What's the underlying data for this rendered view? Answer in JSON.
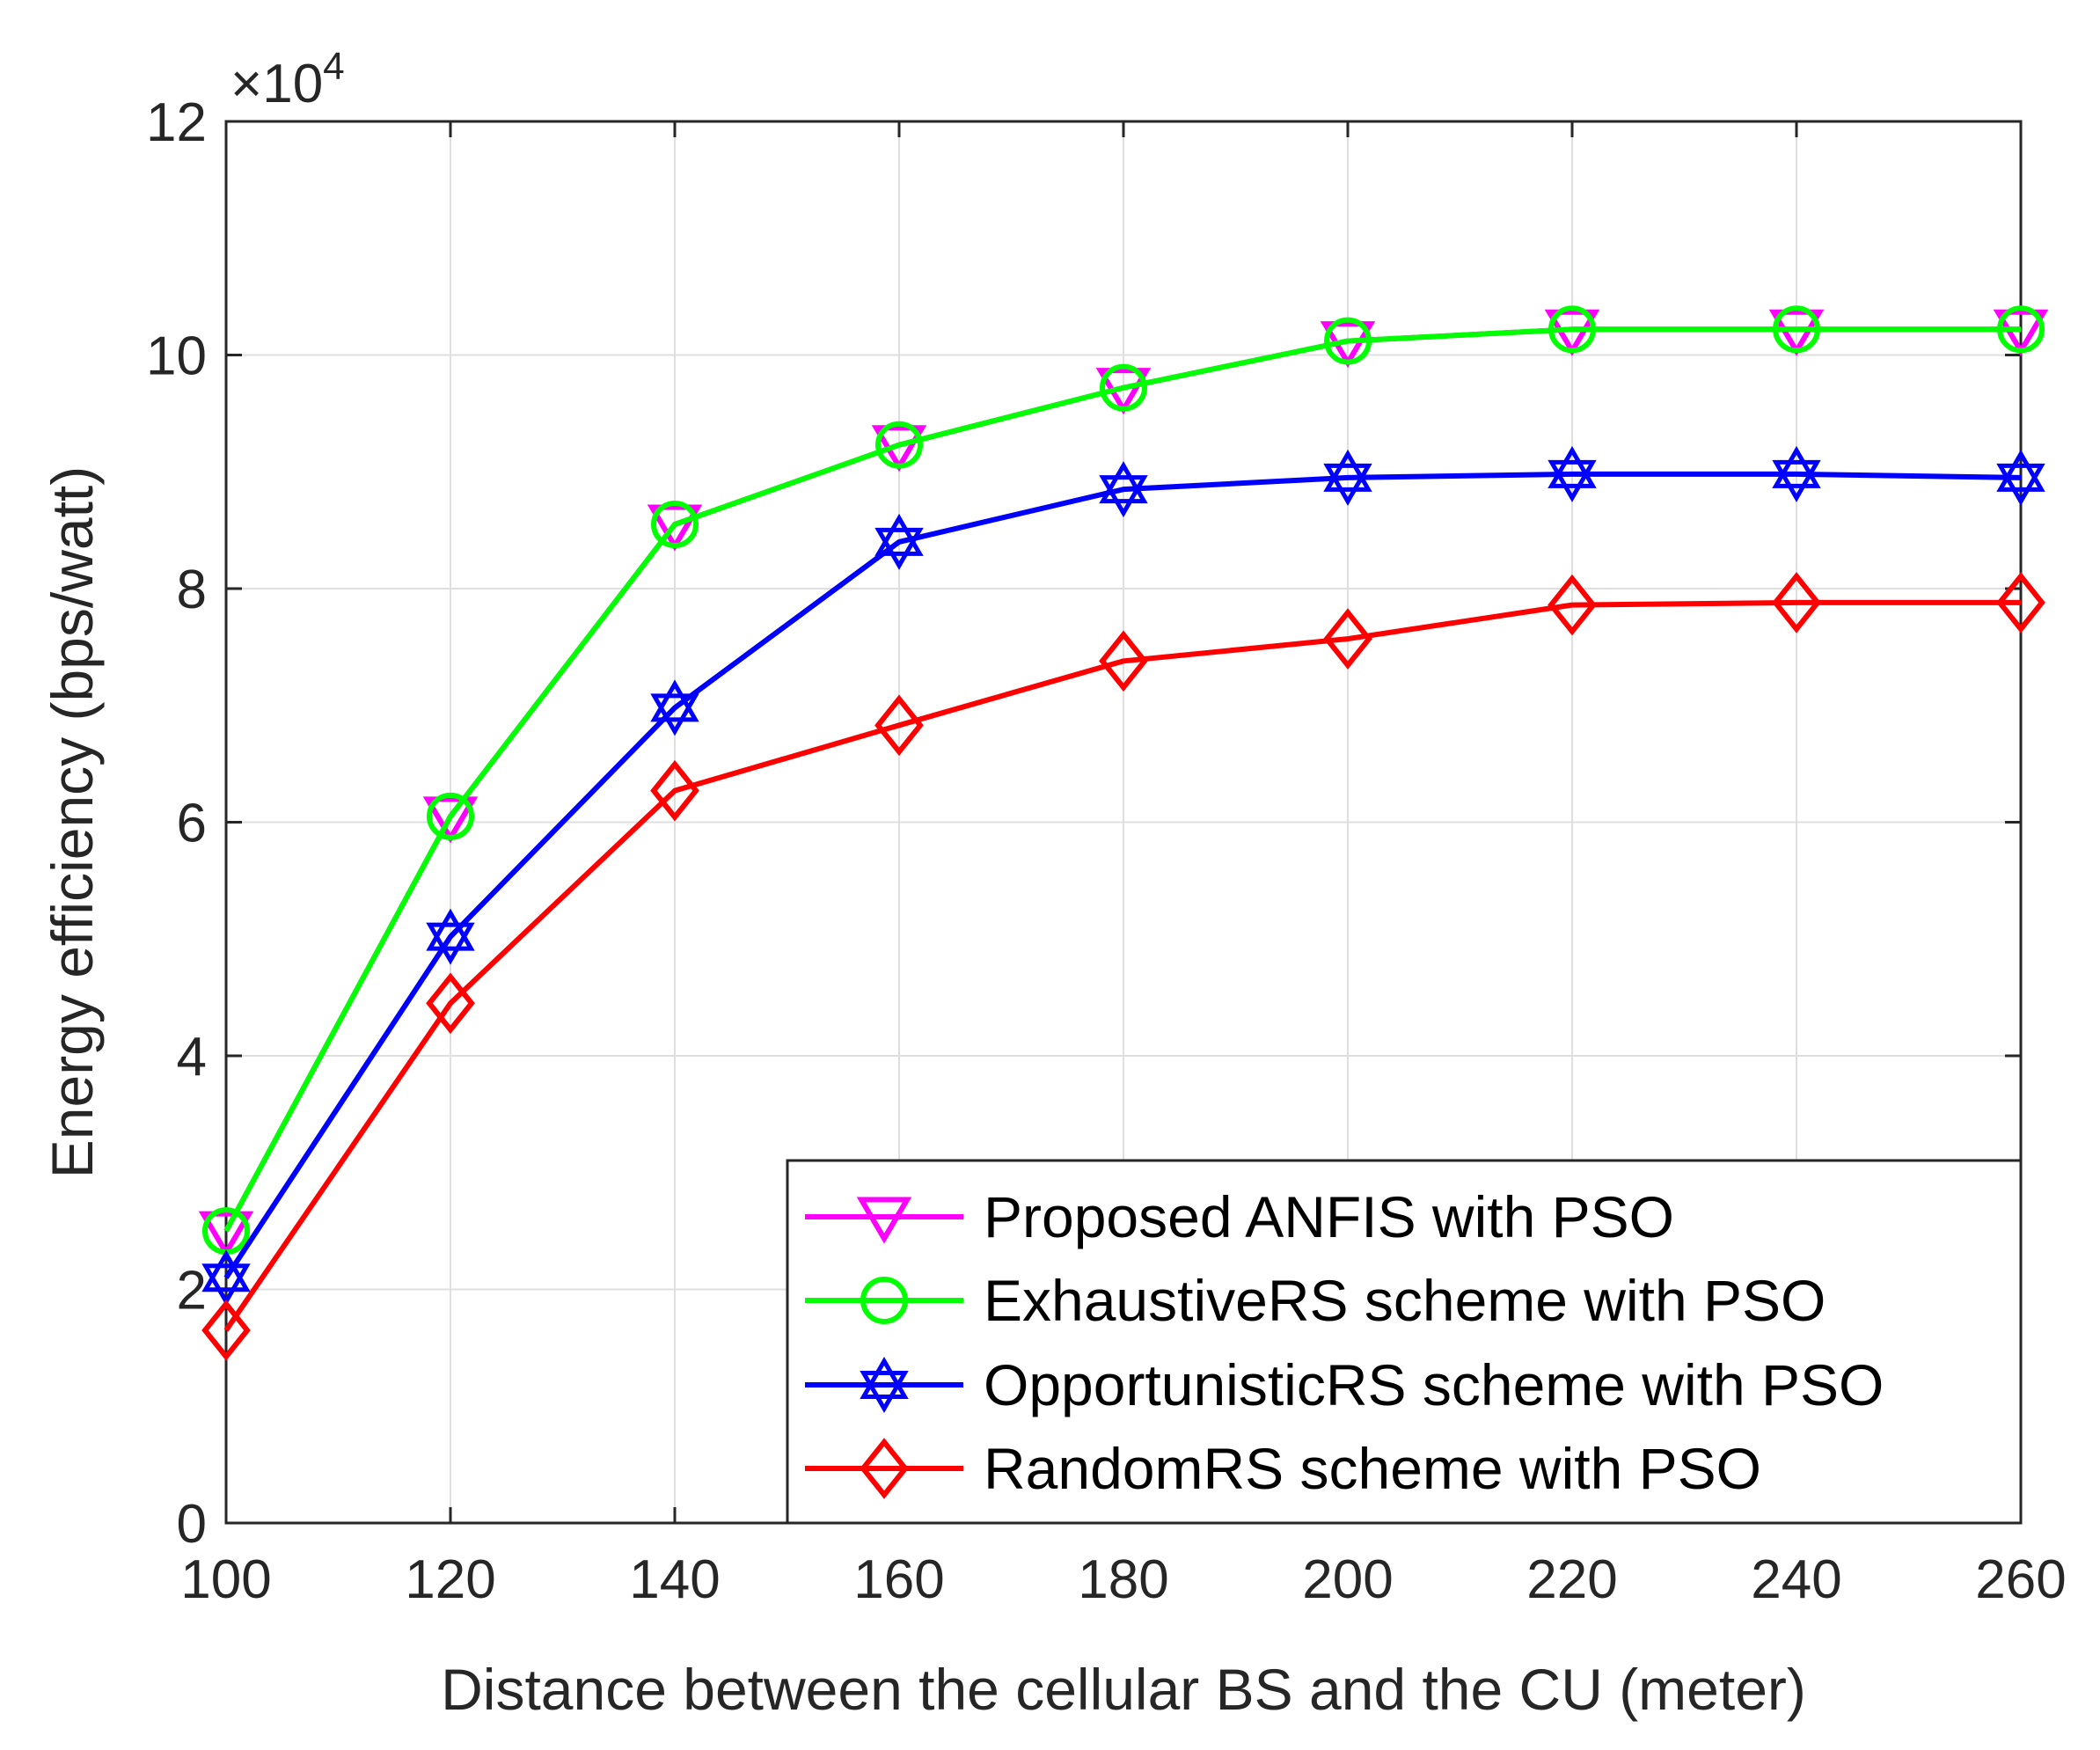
{
  "chart_data": {
    "type": "line",
    "title": "",
    "xlabel": "Distance between the cellular BS and the CU (meter)",
    "ylabel": "Energy efficiency (bps/watt)",
    "y_multiplier": {
      "base": "×10",
      "exponent": "4"
    },
    "x": [
      100,
      120,
      140,
      160,
      180,
      200,
      220,
      240,
      260
    ],
    "x_ticks": [
      100,
      120,
      140,
      160,
      180,
      200,
      220,
      240,
      260
    ],
    "y_ticks": [
      0,
      2,
      4,
      6,
      8,
      10,
      12
    ],
    "xlim": [
      100,
      260
    ],
    "ylim": [
      0,
      12
    ],
    "grid": true,
    "legend_position": "bottom-right",
    "series": [
      {
        "name": "Proposed ANFIS with PSO",
        "color": "#FF00FF",
        "marker": "triangle-down",
        "values": [
          2.5,
          6.05,
          8.55,
          9.23,
          9.72,
          10.12,
          10.22,
          10.22,
          10.22
        ]
      },
      {
        "name": "ExhaustiveRS scheme with PSO",
        "color": "#00FF00",
        "marker": "circle",
        "values": [
          2.5,
          6.05,
          8.55,
          9.23,
          9.72,
          10.12,
          10.22,
          10.22,
          10.22
        ]
      },
      {
        "name": "OpportunisticRS scheme with PSO",
        "color": "#0000FF",
        "marker": "hexagram",
        "values": [
          2.1,
          5.02,
          6.98,
          8.4,
          8.85,
          8.95,
          8.98,
          8.98,
          8.95
        ]
      },
      {
        "name": "RandomRS scheme with PSO",
        "color": "#FF0000",
        "marker": "diamond",
        "values": [
          1.65,
          4.45,
          6.27,
          6.83,
          7.38,
          7.57,
          7.86,
          7.88,
          7.88
        ]
      }
    ]
  }
}
